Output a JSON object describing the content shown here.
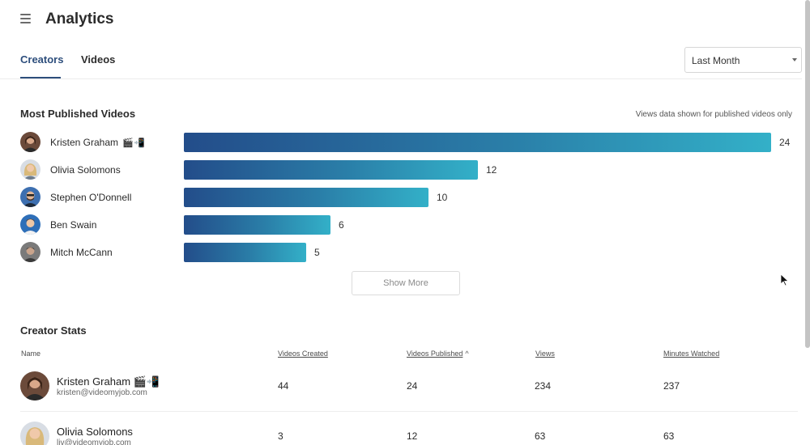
{
  "app": {
    "title": "Analytics"
  },
  "tabs": [
    {
      "label": "Creators",
      "active": true
    },
    {
      "label": "Videos",
      "active": false
    }
  ],
  "date_filter": {
    "selected": "Last Month"
  },
  "most_published": {
    "title": "Most Published Videos",
    "note": "Views data shown for published videos only",
    "show_more_label": "Show More",
    "chart_data": {
      "type": "bar",
      "orientation": "horizontal",
      "categories": [
        "Kristen Graham 🎬📲",
        "Olivia Solomons",
        "Stephen O'Donnell",
        "Ben Swain",
        "Mitch McCann"
      ],
      "values": [
        24,
        12,
        10,
        6,
        5
      ],
      "colors": {
        "start": "#234d8a",
        "end": "#33b0c8"
      }
    },
    "rows": [
      {
        "name": "Kristen Graham",
        "emoji": "🎬📲",
        "value": "24"
      },
      {
        "name": "Olivia Solomons",
        "emoji": "",
        "value": "12"
      },
      {
        "name": "Stephen O'Donnell",
        "emoji": "",
        "value": "10"
      },
      {
        "name": "Ben Swain",
        "emoji": "",
        "value": "6"
      },
      {
        "name": "Mitch McCann",
        "emoji": "",
        "value": "5"
      }
    ]
  },
  "creator_stats": {
    "title": "Creator Stats",
    "columns": {
      "name": "Name",
      "videos_created": "Videos Created",
      "videos_published": "Videos Published",
      "views": "Views",
      "minutes_watched": "Minutes Watched"
    },
    "sorted_by": "videos_published",
    "sort_direction": "ascending",
    "rows": [
      {
        "name": "Kristen Graham",
        "emoji": "🎬📲",
        "email": "kristen@videomyjob.com",
        "videos_created": "44",
        "videos_published": "24",
        "views": "234",
        "minutes_watched": "237"
      },
      {
        "name": "Olivia Solomons",
        "emoji": "",
        "email": "liv@videomyjob.com",
        "videos_created": "3",
        "videos_published": "12",
        "views": "63",
        "minutes_watched": "63"
      }
    ]
  },
  "icons": {
    "menu": "hamburger-icon",
    "dropdown": "chevron-down-icon",
    "sort": "sort-up-icon",
    "cursor": "mouse-pointer-icon"
  },
  "colors": {
    "accent": "#2d4e7c",
    "bar_start": "#234d8a",
    "bar_end": "#33b0c8"
  }
}
